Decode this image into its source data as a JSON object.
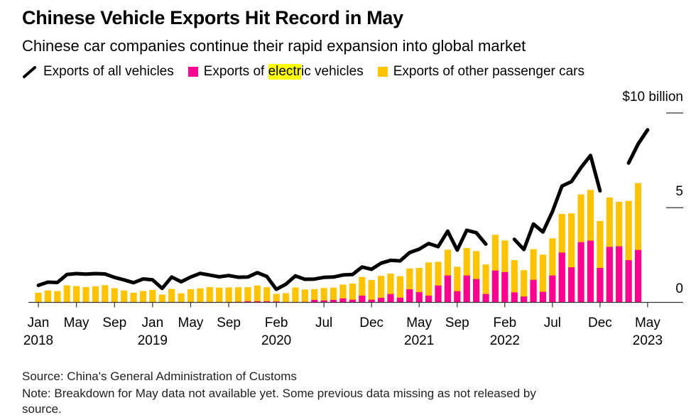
{
  "title": "Chinese Vehicle Exports Hit Record in May",
  "subtitle": "Chinese car companies continue their rapid expansion into global market",
  "legend": {
    "all": "Exports of all vehicles",
    "ev_pre": "Exports of ",
    "ev_hl": "electr",
    "ev_post": "ic vehicles",
    "other": "Exports of other passenger cars"
  },
  "source": "Source: China's General Administration of Customs",
  "note": "Note: Breakdown for May data not available yet. Some previous data missing as not released by",
  "note2": "source.",
  "colors": {
    "all": "#000000",
    "ev": "#ff0090",
    "other": "#ffc300",
    "highlight": "#ffff00"
  },
  "chart_data": {
    "type": "bar",
    "title": "Chinese Vehicle Exports Hit Record in May",
    "ylabel": "$ billion",
    "ylim": [
      0,
      10
    ],
    "yticks": [
      {
        "v": 0,
        "label": "0"
      },
      {
        "v": 5,
        "label": "5"
      },
      {
        "v": 10,
        "label": "$10 billion"
      }
    ],
    "start_month": "Jan 2018",
    "xticks": [
      {
        "i": 0,
        "m": "Jan",
        "y": "2018"
      },
      {
        "i": 4,
        "m": "May",
        "y": ""
      },
      {
        "i": 8,
        "m": "Sep",
        "y": ""
      },
      {
        "i": 12,
        "m": "Jan",
        "y": "2019"
      },
      {
        "i": 16,
        "m": "May",
        "y": ""
      },
      {
        "i": 20,
        "m": "Sep",
        "y": ""
      },
      {
        "i": 25,
        "m": "Feb",
        "y": "2020"
      },
      {
        "i": 30,
        "m": "Jul",
        "y": ""
      },
      {
        "i": 35,
        "m": "Dec",
        "y": ""
      },
      {
        "i": 40,
        "m": "May",
        "y": "2021"
      },
      {
        "i": 44,
        "m": "Sep",
        "y": ""
      },
      {
        "i": 49,
        "m": "Feb",
        "y": "2022"
      },
      {
        "i": 54,
        "m": "Jul",
        "y": ""
      },
      {
        "i": 59,
        "m": "Dec",
        "y": ""
      },
      {
        "i": 64,
        "m": "May",
        "y": "2023"
      }
    ],
    "series": [
      {
        "name": "Exports of all vehicles",
        "type": "line",
        "values": [
          0.9,
          1.07,
          1.05,
          1.47,
          1.52,
          1.49,
          1.52,
          1.5,
          1.32,
          1.19,
          1.04,
          1.24,
          1.19,
          0.74,
          1.34,
          1.09,
          1.34,
          1.53,
          1.44,
          1.35,
          1.42,
          1.33,
          1.34,
          1.57,
          1.37,
          0.69,
          0.96,
          1.4,
          1.22,
          1.23,
          1.32,
          1.34,
          1.45,
          1.47,
          1.87,
          1.75,
          2.07,
          2.22,
          2.19,
          2.63,
          2.81,
          3.11,
          2.94,
          3.76,
          2.76,
          3.81,
          3.68,
          3.08,
          null,
          null,
          3.33,
          2.79,
          4.14,
          3.72,
          4.79,
          6.14,
          6.38,
          7.12,
          7.76,
          5.89,
          null,
          null,
          7.36,
          8.36,
          9.11
        ]
      },
      {
        "name": "Exports of electric vehicles",
        "type": "bar",
        "values": [
          0,
          0,
          0,
          0,
          0,
          0,
          0,
          0,
          0,
          0,
          0,
          0,
          0,
          0,
          0,
          0,
          0,
          0,
          0,
          0.02,
          0.02,
          0.03,
          0.06,
          0.06,
          0.06,
          0.05,
          0.02,
          0.02,
          0.03,
          0.13,
          0.1,
          0.13,
          0.21,
          0.14,
          0.36,
          0.14,
          0.24,
          0.44,
          0.25,
          0.69,
          0.54,
          0.36,
          0.89,
          1.42,
          0.59,
          1.42,
          1.23,
          0.44,
          1.68,
          1.6,
          0.53,
          0.31,
          1.19,
          0.56,
          1.42,
          2.63,
          1.85,
          3.18,
          3.26,
          1.82,
          2.93,
          2.96,
          2.23,
          2.77
        ]
      },
      {
        "name": "Exports of other passenger cars (stacked total)",
        "type": "bar",
        "values": [
          0.51,
          0.63,
          0.6,
          0.9,
          0.86,
          0.81,
          0.85,
          0.91,
          0.75,
          0.63,
          0.51,
          0.6,
          0.66,
          0.41,
          0.71,
          0.48,
          0.7,
          0.74,
          0.81,
          0.78,
          0.79,
          0.8,
          0.8,
          0.89,
          0.8,
          0.45,
          0.49,
          0.79,
          0.68,
          0.7,
          0.76,
          0.78,
          0.94,
          0.99,
          1.34,
          1.18,
          1.4,
          1.52,
          1.38,
          1.79,
          1.82,
          2.11,
          2.14,
          2.78,
          1.88,
          2.87,
          2.71,
          2.0,
          3.57,
          3.27,
          2.23,
          1.7,
          2.81,
          2.52,
          3.38,
          4.67,
          4.7,
          5.7,
          5.94,
          4.3,
          5.54,
          5.31,
          5.36,
          6.3
        ]
      }
    ]
  }
}
